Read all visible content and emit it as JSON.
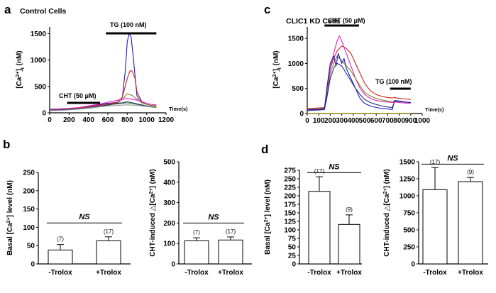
{
  "panels": {
    "a": {
      "letter": "a",
      "title": "Control Cells"
    },
    "b": {
      "letter": "b"
    },
    "c": {
      "letter": "c",
      "title": "CLIC1 KD Cells"
    },
    "d": {
      "letter": "d"
    }
  },
  "colors": {
    "blue": "#1a1acc",
    "red": "#d21e1e",
    "magenta": "#e020c8",
    "olive": "#808020",
    "green": "#3a8a3a",
    "navy": "#2a2a78",
    "gray": "#9a9a9a",
    "yellow": "#d8d020",
    "pink": "#e07a9a"
  },
  "chart_data": [
    {
      "id": "a",
      "type": "line",
      "title": "Control Cells",
      "ylabel": "[Ca2+]i (nM)",
      "xlabel": "Time(s)",
      "xlim": [
        0,
        1200
      ],
      "ylim": [
        0,
        1600
      ],
      "xticks": [
        "0",
        "200",
        "400",
        "600",
        "800",
        "1000",
        "1200"
      ],
      "yticks": [
        "0",
        "500",
        "1000",
        "1500"
      ],
      "annotations": [
        {
          "label": "TG (100 nM)",
          "start": 580,
          "end": 1100
        },
        {
          "label": "CHT (50 μM)",
          "start": 180,
          "end": 520
        }
      ],
      "series": [
        {
          "name": "trace-blue",
          "color": "blue",
          "x": [
            0,
            100,
            200,
            300,
            400,
            500,
            600,
            650,
            700,
            750,
            780,
            800,
            820,
            840,
            860,
            880,
            900,
            950,
            1000,
            1050,
            1100
          ],
          "y": [
            65,
            70,
            80,
            95,
            120,
            150,
            180,
            190,
            200,
            300,
            800,
            1350,
            1500,
            1430,
            1100,
            700,
            320,
            200,
            160,
            140,
            130
          ]
        },
        {
          "name": "trace-red",
          "color": "red",
          "x": [
            0,
            100,
            200,
            300,
            400,
            500,
            600,
            650,
            700,
            750,
            800,
            830,
            850,
            880,
            900,
            950,
            1000,
            1050,
            1100
          ],
          "y": [
            60,
            65,
            75,
            90,
            110,
            140,
            170,
            185,
            200,
            300,
            650,
            800,
            790,
            650,
            400,
            210,
            160,
            140,
            130
          ]
        },
        {
          "name": "trace-olive",
          "color": "olive",
          "x": [
            0,
            100,
            200,
            300,
            400,
            500,
            600,
            650,
            700,
            750,
            800,
            850,
            900,
            950,
            1000,
            1050,
            1100
          ],
          "y": [
            55,
            60,
            70,
            85,
            100,
            125,
            155,
            170,
            190,
            250,
            360,
            330,
            260,
            190,
            160,
            140,
            125
          ]
        },
        {
          "name": "trace-magenta",
          "color": "magenta",
          "x": [
            0,
            100,
            200,
            300,
            400,
            500,
            600,
            650,
            700,
            750,
            800,
            850,
            900,
            950,
            1000,
            1050,
            1100
          ],
          "y": [
            70,
            75,
            85,
            100,
            130,
            160,
            200,
            220,
            240,
            260,
            270,
            260,
            240,
            210,
            180,
            160,
            150
          ]
        },
        {
          "name": "trace-green",
          "color": "green",
          "x": [
            0,
            100,
            200,
            300,
            400,
            500,
            600,
            650,
            700,
            750,
            800,
            850,
            900,
            950,
            1000,
            1050,
            1100
          ],
          "y": [
            45,
            50,
            60,
            70,
            85,
            110,
            140,
            160,
            170,
            180,
            190,
            175,
            160,
            140,
            120,
            110,
            100
          ]
        },
        {
          "name": "trace-navy",
          "color": "navy",
          "x": [
            0,
            100,
            200,
            300,
            400,
            500,
            600,
            650,
            700,
            750,
            800,
            850,
            900,
            950,
            1000,
            1050,
            1100
          ],
          "y": [
            50,
            55,
            65,
            80,
            95,
            120,
            150,
            170,
            180,
            190,
            210,
            190,
            170,
            150,
            130,
            120,
            110
          ]
        },
        {
          "name": "trace-gray",
          "color": "gray",
          "x": [
            0,
            100,
            200,
            300,
            400,
            500,
            600,
            700,
            800,
            900,
            1000,
            1100
          ],
          "y": [
            40,
            45,
            55,
            70,
            90,
            110,
            130,
            140,
            150,
            140,
            120,
            110
          ]
        }
      ]
    },
    {
      "id": "c",
      "type": "line",
      "title": "CLIC1 KD Cells",
      "ylabel": "[Ca2+]i (nM)",
      "xlabel": "Time(s)",
      "xlim": [
        0,
        1000
      ],
      "ylim": [
        0,
        1700
      ],
      "xticks": [
        "0",
        "100",
        "200",
        "300",
        "400",
        "500",
        "600",
        "700",
        "800",
        "900",
        "1000"
      ],
      "yticks": [
        "0",
        "500",
        "1000",
        "1500"
      ],
      "annotations": [
        {
          "label": "CHT (50 μM)",
          "start": 150,
          "end": 450
        },
        {
          "label": "TG (100 nM)",
          "start": 720,
          "end": 900
        }
      ],
      "series": [
        {
          "name": "trace-red",
          "color": "red",
          "x": [
            0,
            100,
            150,
            170,
            200,
            230,
            260,
            300,
            340,
            380,
            420,
            460,
            500,
            550,
            600,
            650,
            700,
            740,
            760,
            800,
            850,
            900
          ],
          "y": [
            100,
            110,
            120,
            400,
            900,
            1100,
            1250,
            1350,
            1300,
            1200,
            1000,
            800,
            600,
            450,
            380,
            340,
            320,
            310,
            320,
            300,
            290,
            280
          ]
        },
        {
          "name": "trace-magenta",
          "color": "magenta",
          "x": [
            0,
            100,
            150,
            170,
            200,
            230,
            260,
            280,
            300,
            340,
            380,
            420,
            460,
            500,
            550,
            600,
            650,
            700,
            740,
            760,
            800,
            850,
            900
          ],
          "y": [
            80,
            90,
            100,
            450,
            900,
            1200,
            1450,
            1550,
            1450,
            1200,
            950,
            700,
            500,
            380,
            300,
            260,
            240,
            230,
            220,
            230,
            220,
            210,
            200
          ]
        },
        {
          "name": "trace-olive",
          "color": "olive",
          "x": [
            0,
            100,
            150,
            170,
            200,
            230,
            260,
            300,
            340,
            380,
            420,
            460,
            500,
            550,
            600,
            650,
            700,
            740,
            760,
            800,
            850,
            900
          ],
          "y": [
            90,
            100,
            110,
            350,
            800,
            1000,
            1150,
            1050,
            950,
            850,
            700,
            550,
            420,
            350,
            300,
            270,
            250,
            240,
            250,
            240,
            230,
            220
          ]
        },
        {
          "name": "trace-blue",
          "color": "blue",
          "x": [
            0,
            100,
            150,
            170,
            200,
            230,
            250,
            270,
            300,
            320,
            340,
            380,
            420,
            460,
            500,
            550,
            600,
            650,
            700,
            740,
            760,
            800,
            850,
            900
          ],
          "y": [
            70,
            80,
            90,
            500,
            1000,
            1150,
            950,
            1200,
            1000,
            1100,
            900,
            700,
            500,
            300,
            200,
            150,
            120,
            100,
            90,
            80,
            260,
            250,
            230,
            220
          ]
        },
        {
          "name": "trace-navy",
          "color": "navy",
          "x": [
            0,
            100,
            150,
            170,
            200,
            230,
            260,
            300,
            340,
            380,
            420,
            460,
            500,
            550,
            600,
            650,
            700,
            740,
            760,
            800,
            850,
            900
          ],
          "y": [
            60,
            70,
            80,
            300,
            700,
            900,
            1000,
            950,
            800,
            650,
            500,
            380,
            280,
            220,
            180,
            150,
            130,
            120,
            250,
            240,
            230,
            220
          ]
        },
        {
          "name": "trace-yellow",
          "color": "yellow",
          "x": [
            0,
            100,
            200,
            300,
            400,
            500,
            600,
            700,
            800,
            900
          ],
          "y": [
            5,
            5,
            5,
            5,
            5,
            5,
            5,
            5,
            5,
            5
          ]
        }
      ]
    },
    {
      "id": "b1",
      "type": "bar",
      "ylabel": "Basal [Ca2+] level (nM)",
      "ylim": [
        0,
        250
      ],
      "yticks": [
        "0",
        "50",
        "100",
        "150",
        "200",
        "250"
      ],
      "categories": [
        "-Trolox",
        "+Trolox"
      ],
      "values": [
        38,
        63
      ],
      "errors": [
        15,
        11
      ],
      "n_labels": [
        "(7)",
        "(17)"
      ],
      "significance": "NS",
      "sig_y": 112
    },
    {
      "id": "b2",
      "type": "bar",
      "ylabel": "CHT-induced △[Ca2+] (nM)",
      "ylim": [
        0,
        500
      ],
      "yticks": [
        "0",
        "100",
        "200",
        "300",
        "400",
        "500"
      ],
      "categories": [
        "-Trolox",
        "+Trolox"
      ],
      "values": [
        113,
        117
      ],
      "errors": [
        15,
        15
      ],
      "n_labels": [
        "(7)",
        "(17)"
      ],
      "significance": "NS",
      "sig_y": 200
    },
    {
      "id": "d1",
      "type": "bar",
      "ylabel": "Basal [Ca2+] level (nM)",
      "ylim": [
        0,
        275
      ],
      "yticks": [
        "0",
        "25",
        "50",
        "75",
        "100",
        "125",
        "150",
        "175",
        "200",
        "225",
        "250",
        "275"
      ],
      "categories": [
        "-Trolox",
        "+Trolox"
      ],
      "values": [
        213,
        116
      ],
      "errors": [
        43,
        28
      ],
      "n_labels": [
        "(17)",
        "(9)"
      ],
      "significance": "NS",
      "sig_y": 268
    },
    {
      "id": "d2",
      "type": "bar",
      "ylabel": "CHT-induced △[Ca2+] (nM)",
      "ylim": [
        0,
        1500
      ],
      "yticks": [
        "0",
        "250",
        "500",
        "750",
        "1000",
        "1250",
        "1500"
      ],
      "categories": [
        "-Trolox",
        "+Trolox"
      ],
      "values": [
        1090,
        1208
      ],
      "errors": [
        325,
        62
      ],
      "n_labels": [
        "(17)",
        "(9)"
      ],
      "significance": "NS",
      "sig_y": 1465
    }
  ]
}
